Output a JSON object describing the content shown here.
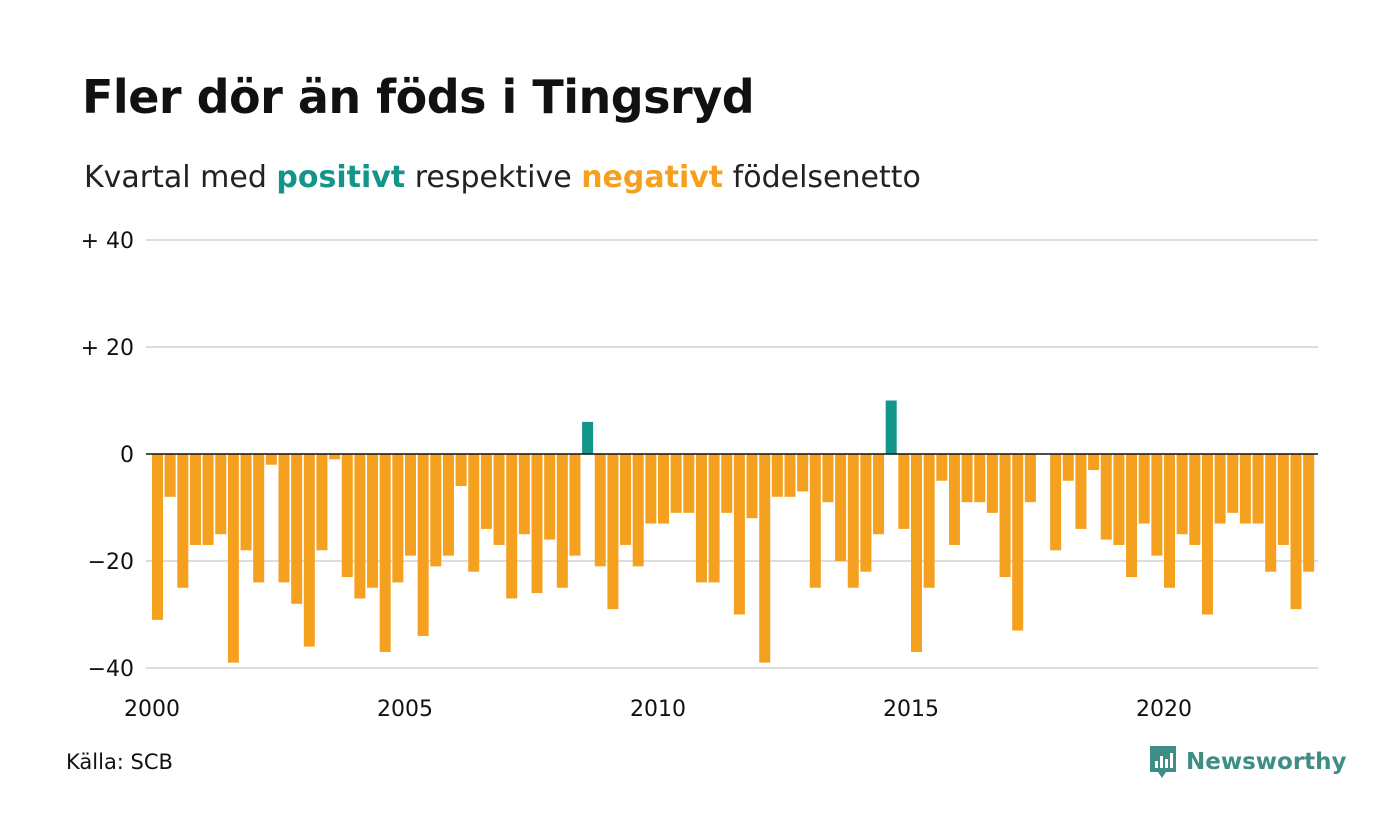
{
  "colors": {
    "positive": "#14958a",
    "negative": "#f5a01f",
    "grid": "#dddddd",
    "zero": "#111111",
    "brand": "#3e8e86"
  },
  "header": {
    "title": "Fler dör än föds i Tingsryd",
    "subtitle_prefix": "Kvartal med ",
    "subtitle_positive": "positivt",
    "subtitle_middle": " respektive ",
    "subtitle_negative": "negativt",
    "subtitle_suffix": " födelsenetto"
  },
  "footer": {
    "source": "Källa: SCB",
    "brand": "Newsworthy",
    "brand_icon": "newsworthy-logo-icon"
  },
  "chart_data": {
    "type": "bar",
    "title": "Fler dör än föds i Tingsryd",
    "subtitle": "Kvartal med positivt respektive negativt födelsenetto",
    "xlabel": "",
    "ylabel": "",
    "ylim": [
      -40,
      40
    ],
    "yticks": [
      {
        "value": 40,
        "label": "+ 40"
      },
      {
        "value": 20,
        "label": "+ 20"
      },
      {
        "value": 0,
        "label": "0"
      },
      {
        "value": -20,
        "label": "−20"
      },
      {
        "value": -40,
        "label": "−40"
      }
    ],
    "xticks": [
      "2000",
      "2005",
      "2010",
      "2015",
      "2020"
    ],
    "grid": true,
    "x_start": "2000 Q1",
    "x_end": "2022 Q4",
    "values": [
      -31,
      -8,
      -25,
      -17,
      -17,
      -15,
      -39,
      -18,
      -24,
      -2,
      -24,
      -28,
      -36,
      -18,
      -1,
      -23,
      -27,
      -25,
      -37,
      -24,
      -19,
      -34,
      -21,
      -19,
      -6,
      -22,
      -14,
      -17,
      -27,
      -15,
      -26,
      -16,
      -25,
      -19,
      6,
      -21,
      -29,
      -17,
      -21,
      -13,
      -13,
      -11,
      -11,
      -24,
      -24,
      -11,
      -30,
      -12,
      -39,
      -8,
      -8,
      -7,
      -25,
      -9,
      -20,
      -25,
      -22,
      -15,
      10,
      -14,
      -37,
      -25,
      -5,
      -17,
      -9,
      -9,
      -11,
      -23,
      -33,
      -9,
      0,
      -18,
      -5,
      -14,
      -3,
      -16,
      -17,
      -23,
      -13,
      -19,
      -25,
      -15,
      -17,
      -30,
      -13,
      -11,
      -13,
      -13,
      -22,
      -17,
      -29,
      -22
    ]
  }
}
